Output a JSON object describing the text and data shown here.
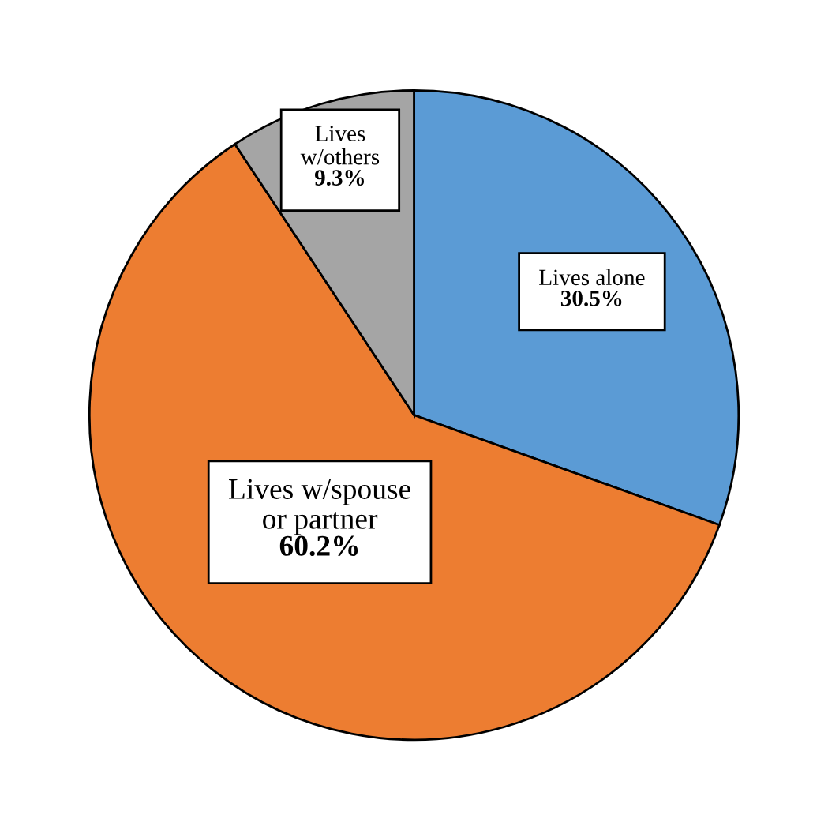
{
  "chart_data": {
    "type": "pie",
    "categories": [
      "Lives alone",
      "Lives w/spouse\nor partner",
      "Lives\nw/others"
    ],
    "values": [
      30.5,
      60.2,
      9.3
    ],
    "colors": [
      "#5b9bd5",
      "#ed7d31",
      "#a5a5a5"
    ],
    "value_labels": [
      "30.5%",
      "60.2%",
      "9.3%"
    ]
  }
}
